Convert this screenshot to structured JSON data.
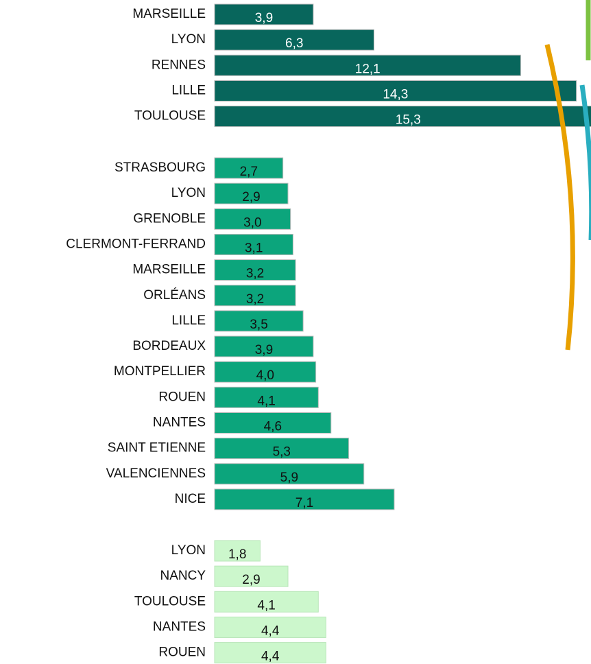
{
  "chart_data": [
    {
      "type": "bar",
      "orientation": "horizontal",
      "color": "#08665c",
      "label_color": "#ffffff",
      "categories": [
        "MARSEILLE",
        "LYON",
        "RENNES",
        "LILLE",
        "TOULOUSE"
      ],
      "values": [
        3.9,
        6.3,
        12.1,
        14.3,
        15.3
      ],
      "value_labels": [
        "3,9",
        "6,3",
        "12,1",
        "14,3",
        "15,3"
      ]
    },
    {
      "type": "bar",
      "orientation": "horizontal",
      "color": "#0ca57c",
      "label_color": "#111111",
      "categories": [
        "STRASBOURG",
        "LYON",
        "GRENOBLE",
        "CLERMONT-FERRAND",
        "MARSEILLE",
        "ORLÉANS",
        "LILLE",
        "BORDEAUX",
        "MONTPELLIER",
        "ROUEN",
        "NANTES",
        "SAINT ETIENNE",
        "VALENCIENNES",
        "NICE"
      ],
      "values": [
        2.7,
        2.9,
        3.0,
        3.1,
        3.2,
        3.2,
        3.5,
        3.9,
        4.0,
        4.1,
        4.6,
        5.3,
        5.9,
        7.1
      ],
      "value_labels": [
        "2,7",
        "2,9",
        "3,0",
        "3,1",
        "3,2",
        "3,2",
        "3,5",
        "3,9",
        "4,0",
        "4,1",
        "4,6",
        "5,3",
        "5,9",
        "7,1"
      ]
    },
    {
      "type": "bar",
      "orientation": "horizontal",
      "color": "#ccf7cc",
      "label_color": "#111111",
      "categories": [
        "LYON",
        "NANCY",
        "TOULOUSE",
        "NANTES",
        "ROUEN"
      ],
      "values": [
        1.8,
        2.9,
        4.1,
        4.4,
        4.4
      ],
      "value_labels": [
        "1,8",
        "2,9",
        "4,1",
        "4,4",
        "4,4"
      ]
    }
  ]
}
